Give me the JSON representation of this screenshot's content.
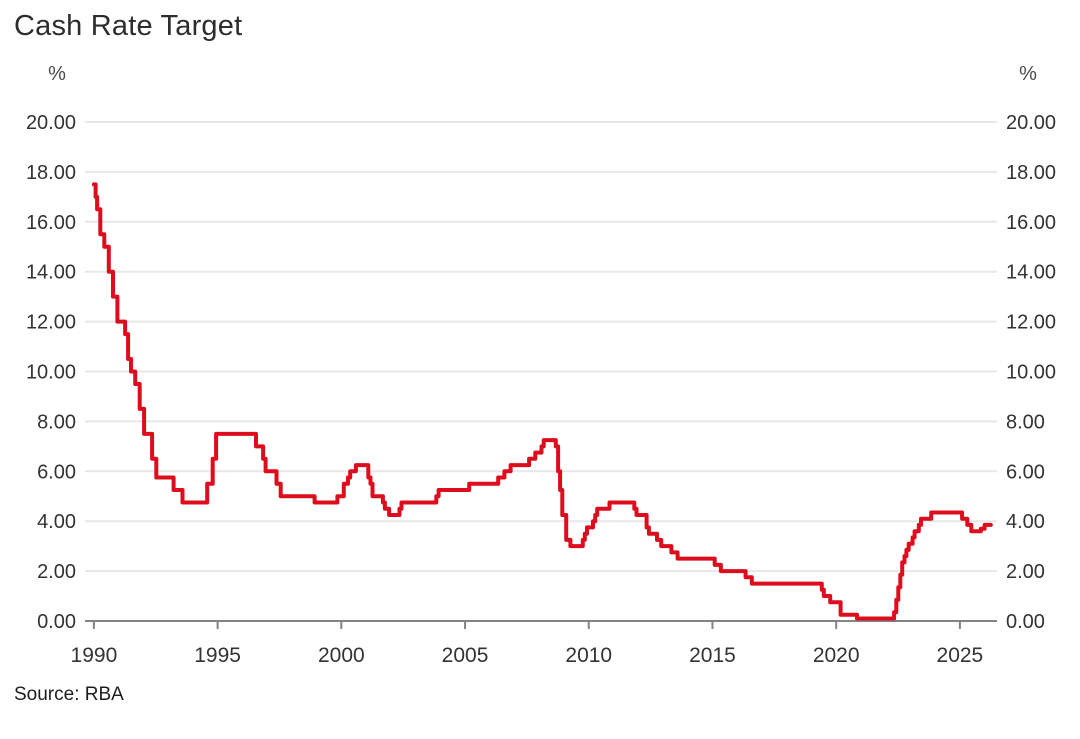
{
  "title": "Cash Rate Target",
  "source": "Source: RBA",
  "chart_data": {
    "type": "line",
    "step": true,
    "title": "Cash Rate Target",
    "ylabel_left": "%",
    "ylabel_right": "%",
    "xlabel": "",
    "xlim": [
      1989.64,
      2026.5
    ],
    "ylim": [
      0,
      20
    ],
    "xticks": [
      1990,
      1995,
      2000,
      2005,
      2010,
      2015,
      2020,
      2025
    ],
    "yticks": [
      0,
      2,
      4,
      6,
      8,
      10,
      12,
      14,
      16,
      18,
      20
    ],
    "ytick_labels": [
      "0.00",
      "2.00",
      "4.00",
      "6.00",
      "8.00",
      "10.00",
      "12.00",
      "14.00",
      "16.00",
      "18.00",
      "20.00"
    ],
    "grid": "horizontal",
    "legend": "none",
    "colors": {
      "line": "#dd0d1e",
      "grid": "#e7e7e7",
      "axis": "#848484",
      "tick_text": "#333333"
    },
    "series": [
      {
        "name": "Cash Rate Target",
        "unit": "%",
        "x_end": 2026.25,
        "points": [
          [
            1990.0,
            17.5
          ],
          [
            1990.07,
            17.0
          ],
          [
            1990.13,
            16.5
          ],
          [
            1990.26,
            15.5
          ],
          [
            1990.42,
            15.0
          ],
          [
            1990.6,
            14.0
          ],
          [
            1990.77,
            13.0
          ],
          [
            1990.95,
            12.0
          ],
          [
            1991.26,
            11.5
          ],
          [
            1991.38,
            10.5
          ],
          [
            1991.5,
            10.0
          ],
          [
            1991.67,
            9.5
          ],
          [
            1991.85,
            8.5
          ],
          [
            1992.03,
            7.5
          ],
          [
            1992.35,
            6.5
          ],
          [
            1992.52,
            5.75
          ],
          [
            1993.22,
            5.25
          ],
          [
            1993.58,
            4.75
          ],
          [
            1994.58,
            5.5
          ],
          [
            1994.8,
            6.5
          ],
          [
            1994.94,
            7.5
          ],
          [
            1996.55,
            7.0
          ],
          [
            1996.84,
            6.5
          ],
          [
            1996.94,
            6.0
          ],
          [
            1997.38,
            5.5
          ],
          [
            1997.55,
            5.0
          ],
          [
            1998.92,
            4.75
          ],
          [
            1999.84,
            5.0
          ],
          [
            2000.1,
            5.5
          ],
          [
            2000.27,
            5.75
          ],
          [
            2000.36,
            6.0
          ],
          [
            2000.59,
            6.25
          ],
          [
            2001.09,
            5.75
          ],
          [
            2001.18,
            5.5
          ],
          [
            2001.26,
            5.0
          ],
          [
            2001.68,
            4.75
          ],
          [
            2001.76,
            4.5
          ],
          [
            2001.93,
            4.25
          ],
          [
            2002.35,
            4.5
          ],
          [
            2002.43,
            4.75
          ],
          [
            2003.84,
            5.0
          ],
          [
            2003.93,
            5.25
          ],
          [
            2005.17,
            5.5
          ],
          [
            2006.34,
            5.75
          ],
          [
            2006.59,
            6.0
          ],
          [
            2006.84,
            6.25
          ],
          [
            2007.59,
            6.5
          ],
          [
            2007.84,
            6.75
          ],
          [
            2008.09,
            7.0
          ],
          [
            2008.18,
            7.25
          ],
          [
            2008.67,
            7.0
          ],
          [
            2008.76,
            6.0
          ],
          [
            2008.84,
            5.25
          ],
          [
            2008.93,
            4.25
          ],
          [
            2009.09,
            3.25
          ],
          [
            2009.26,
            3.0
          ],
          [
            2009.76,
            3.25
          ],
          [
            2009.84,
            3.5
          ],
          [
            2009.93,
            3.75
          ],
          [
            2010.17,
            4.0
          ],
          [
            2010.26,
            4.25
          ],
          [
            2010.34,
            4.5
          ],
          [
            2010.84,
            4.75
          ],
          [
            2011.84,
            4.5
          ],
          [
            2011.93,
            4.25
          ],
          [
            2012.34,
            3.75
          ],
          [
            2012.43,
            3.5
          ],
          [
            2012.76,
            3.25
          ],
          [
            2012.93,
            3.0
          ],
          [
            2013.34,
            2.75
          ],
          [
            2013.59,
            2.5
          ],
          [
            2015.09,
            2.25
          ],
          [
            2015.34,
            2.0
          ],
          [
            2016.34,
            1.75
          ],
          [
            2016.59,
            1.5
          ],
          [
            2019.42,
            1.25
          ],
          [
            2019.5,
            1.0
          ],
          [
            2019.76,
            0.75
          ],
          [
            2020.18,
            0.25
          ],
          [
            2020.84,
            0.1
          ],
          [
            2022.34,
            0.35
          ],
          [
            2022.43,
            0.85
          ],
          [
            2022.51,
            1.35
          ],
          [
            2022.59,
            1.85
          ],
          [
            2022.67,
            2.35
          ],
          [
            2022.76,
            2.6
          ],
          [
            2022.84,
            2.85
          ],
          [
            2022.93,
            3.1
          ],
          [
            2023.09,
            3.35
          ],
          [
            2023.17,
            3.6
          ],
          [
            2023.34,
            3.85
          ],
          [
            2023.43,
            4.1
          ],
          [
            2023.84,
            4.35
          ],
          [
            2025.09,
            4.1
          ],
          [
            2025.3,
            3.85
          ],
          [
            2025.46,
            3.6
          ],
          [
            2025.85,
            3.7
          ],
          [
            2026.0,
            3.85
          ]
        ]
      }
    ]
  }
}
